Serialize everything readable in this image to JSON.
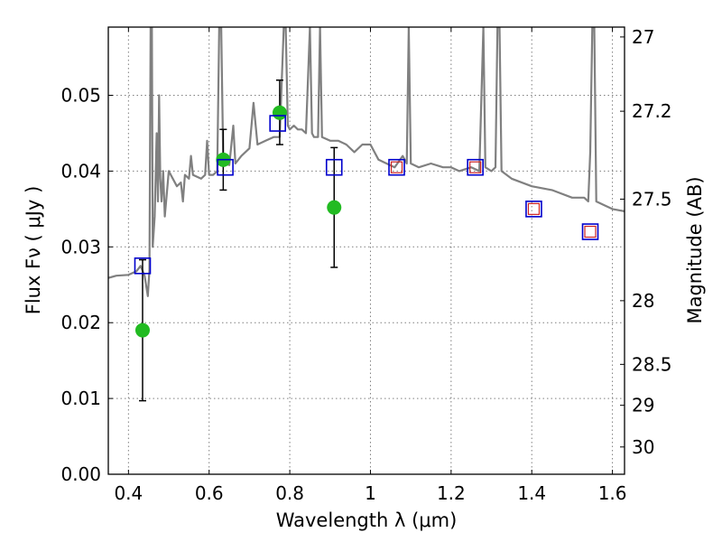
{
  "chart_data": {
    "type": "scatter",
    "title": "",
    "xlabel": "Wavelength  λ (μm)",
    "ylabel": "Flux  Fν  ( μJy )",
    "y2label": "Magnitude (AB)",
    "xlim": [
      0.35,
      1.63
    ],
    "ylim": [
      0.0,
      0.059
    ],
    "grid": true,
    "x_ticks": [
      0.4,
      0.6,
      0.8,
      1.0,
      1.2,
      1.4,
      1.6
    ],
    "x_tick_labels": [
      "0.4",
      "0.6",
      "0.8",
      "1",
      "1.2",
      "1.4",
      "1.6"
    ],
    "y_ticks": [
      0.0,
      0.01,
      0.02,
      0.03,
      0.04,
      0.05
    ],
    "y_tick_labels": [
      "0.00",
      "0.01",
      "0.02",
      "0.03",
      "0.04",
      "0.05"
    ],
    "y2_ticks": [
      {
        "label": "27",
        "flux": 0.0577
      },
      {
        "label": "27.2",
        "flux": 0.0479
      },
      {
        "label": "27.5",
        "flux": 0.0363
      },
      {
        "label": "28",
        "flux": 0.0229
      },
      {
        "label": "28.5",
        "flux": 0.0145
      },
      {
        "label": "29",
        "flux": 0.0091
      },
      {
        "label": "30",
        "flux": 0.0036
      }
    ],
    "series": [
      {
        "kind": "spectrum",
        "color": "#808080",
        "points": [
          [
            0.35,
            0.0259
          ],
          [
            0.37,
            0.0262
          ],
          [
            0.4,
            0.0263
          ],
          [
            0.42,
            0.0268
          ],
          [
            0.43,
            0.0275
          ],
          [
            0.44,
            0.0262
          ],
          [
            0.445,
            0.0245
          ],
          [
            0.448,
            0.0235
          ],
          [
            0.452,
            0.027
          ],
          [
            0.455,
            0.059
          ],
          [
            0.458,
            0.059
          ],
          [
            0.46,
            0.03
          ],
          [
            0.465,
            0.034
          ],
          [
            0.47,
            0.045
          ],
          [
            0.473,
            0.036
          ],
          [
            0.476,
            0.05
          ],
          [
            0.479,
            0.039
          ],
          [
            0.482,
            0.036
          ],
          [
            0.486,
            0.04
          ],
          [
            0.49,
            0.034
          ],
          [
            0.495,
            0.037
          ],
          [
            0.5,
            0.04
          ],
          [
            0.51,
            0.039
          ],
          [
            0.52,
            0.038
          ],
          [
            0.53,
            0.0385
          ],
          [
            0.535,
            0.036
          ],
          [
            0.54,
            0.0395
          ],
          [
            0.55,
            0.039
          ],
          [
            0.555,
            0.042
          ],
          [
            0.56,
            0.0395
          ],
          [
            0.58,
            0.039
          ],
          [
            0.59,
            0.0395
          ],
          [
            0.595,
            0.044
          ],
          [
            0.6,
            0.0395
          ],
          [
            0.61,
            0.0395
          ],
          [
            0.62,
            0.04
          ],
          [
            0.625,
            0.059
          ],
          [
            0.63,
            0.059
          ],
          [
            0.635,
            0.041
          ],
          [
            0.65,
            0.0408
          ],
          [
            0.66,
            0.046
          ],
          [
            0.665,
            0.041
          ],
          [
            0.68,
            0.042
          ],
          [
            0.7,
            0.043
          ],
          [
            0.71,
            0.049
          ],
          [
            0.72,
            0.0435
          ],
          [
            0.74,
            0.044
          ],
          [
            0.76,
            0.0445
          ],
          [
            0.775,
            0.0445
          ],
          [
            0.785,
            0.059
          ],
          [
            0.79,
            0.059
          ],
          [
            0.795,
            0.046
          ],
          [
            0.8,
            0.0455
          ],
          [
            0.81,
            0.046
          ],
          [
            0.82,
            0.0455
          ],
          [
            0.83,
            0.0455
          ],
          [
            0.84,
            0.045
          ],
          [
            0.85,
            0.059
          ],
          [
            0.855,
            0.045
          ],
          [
            0.86,
            0.0445
          ],
          [
            0.87,
            0.0445
          ],
          [
            0.875,
            0.059
          ],
          [
            0.88,
            0.0445
          ],
          [
            0.9,
            0.044
          ],
          [
            0.92,
            0.044
          ],
          [
            0.94,
            0.0435
          ],
          [
            0.96,
            0.0425
          ],
          [
            0.98,
            0.0435
          ],
          [
            1.0,
            0.0435
          ],
          [
            1.02,
            0.0415
          ],
          [
            1.04,
            0.041
          ],
          [
            1.06,
            0.0405
          ],
          [
            1.08,
            0.042
          ],
          [
            1.09,
            0.041
          ],
          [
            1.095,
            0.059
          ],
          [
            1.1,
            0.041
          ],
          [
            1.12,
            0.0405
          ],
          [
            1.15,
            0.041
          ],
          [
            1.18,
            0.0405
          ],
          [
            1.2,
            0.0405
          ],
          [
            1.22,
            0.04
          ],
          [
            1.25,
            0.0405
          ],
          [
            1.27,
            0.04
          ],
          [
            1.28,
            0.059
          ],
          [
            1.285,
            0.0405
          ],
          [
            1.3,
            0.04
          ],
          [
            1.31,
            0.0405
          ],
          [
            1.315,
            0.059
          ],
          [
            1.32,
            0.059
          ],
          [
            1.325,
            0.04
          ],
          [
            1.35,
            0.039
          ],
          [
            1.4,
            0.038
          ],
          [
            1.45,
            0.0375
          ],
          [
            1.5,
            0.0365
          ],
          [
            1.53,
            0.0365
          ],
          [
            1.54,
            0.036
          ],
          [
            1.545,
            0.0425
          ],
          [
            1.55,
            0.059
          ],
          [
            1.555,
            0.059
          ],
          [
            1.56,
            0.036
          ],
          [
            1.58,
            0.0355
          ],
          [
            1.6,
            0.035
          ],
          [
            1.63,
            0.0347
          ]
        ]
      },
      {
        "kind": "observed",
        "color": "#22bb22",
        "errorbar_color": "#000000",
        "points": [
          {
            "x": 0.435,
            "y": 0.019,
            "lo": 0.0097,
            "hi": 0.0283
          },
          {
            "x": 0.635,
            "y": 0.0415,
            "lo": 0.0375,
            "hi": 0.0455
          },
          {
            "x": 0.775,
            "y": 0.0477,
            "lo": 0.0435,
            "hi": 0.052
          },
          {
            "x": 0.91,
            "y": 0.0352,
            "lo": 0.0273,
            "hi": 0.0431
          }
        ]
      },
      {
        "kind": "model-blue",
        "color": "#0000cc",
        "points": [
          {
            "x": 0.435,
            "y": 0.0275
          },
          {
            "x": 0.64,
            "y": 0.0405
          },
          {
            "x": 0.77,
            "y": 0.0463
          },
          {
            "x": 0.91,
            "y": 0.0405
          },
          {
            "x": 1.065,
            "y": 0.0405
          },
          {
            "x": 1.26,
            "y": 0.0405
          },
          {
            "x": 1.405,
            "y": 0.035
          },
          {
            "x": 1.545,
            "y": 0.032
          }
        ]
      },
      {
        "kind": "model-red",
        "color": "#cc2222",
        "points": [
          {
            "x": 1.065,
            "y": 0.0405
          },
          {
            "x": 1.26,
            "y": 0.0405
          },
          {
            "x": 1.405,
            "y": 0.035
          },
          {
            "x": 1.545,
            "y": 0.032
          }
        ]
      }
    ]
  }
}
